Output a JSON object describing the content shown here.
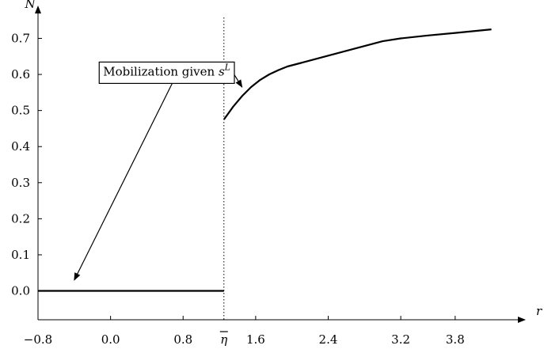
{
  "chart_data": {
    "type": "line",
    "title": "",
    "xlabel": "r",
    "ylabel": "N",
    "xlim": [
      -0.8,
      4.5
    ],
    "ylim": [
      -0.08,
      0.78
    ],
    "x_ticks": [
      {
        "value": -0.8,
        "label": "−0.8"
      },
      {
        "value": 0.0,
        "label": "0.0"
      },
      {
        "value": 0.8,
        "label": "0.8"
      },
      {
        "value": 1.6,
        "label": "1.6"
      },
      {
        "value": 2.4,
        "label": "2.4"
      },
      {
        "value": 3.2,
        "label": "3.2"
      },
      {
        "value": 3.8,
        "label": "3.8"
      }
    ],
    "y_ticks": [
      {
        "value": 0.0,
        "label": "0.0"
      },
      {
        "value": 0.1,
        "label": "0.1"
      },
      {
        "value": 0.2,
        "label": "0.2"
      },
      {
        "value": 0.3,
        "label": "0.3"
      },
      {
        "value": 0.4,
        "label": "0.4"
      },
      {
        "value": 0.5,
        "label": "0.5"
      },
      {
        "value": 0.6,
        "label": "0.6"
      },
      {
        "value": 0.7,
        "label": "0.7"
      }
    ],
    "threshold": {
      "value": 1.25,
      "label": "η"
    },
    "series": [
      {
        "segment": "lower",
        "points": [
          [
            -0.8,
            0.0
          ],
          [
            1.25,
            0.0
          ]
        ]
      },
      {
        "segment": "upper",
        "points": [
          [
            1.25,
            0.475
          ],
          [
            1.35,
            0.51
          ],
          [
            1.45,
            0.54
          ],
          [
            1.55,
            0.565
          ],
          [
            1.65,
            0.585
          ],
          [
            1.75,
            0.6
          ],
          [
            1.85,
            0.612
          ],
          [
            1.95,
            0.622
          ],
          [
            2.1,
            0.632
          ],
          [
            2.4,
            0.652
          ],
          [
            2.7,
            0.672
          ],
          [
            3.0,
            0.692
          ],
          [
            3.2,
            0.7
          ],
          [
            3.5,
            0.708
          ],
          [
            3.8,
            0.715
          ],
          [
            4.2,
            0.725
          ]
        ]
      }
    ],
    "annotations": [
      {
        "text": "Mobilization given ",
        "math_base": "s",
        "math_sup": "L",
        "box_at": [
          0.62,
          0.608
        ],
        "arrows_to": [
          [
            -0.4,
            0.03
          ],
          [
            1.45,
            0.565
          ]
        ]
      }
    ]
  }
}
